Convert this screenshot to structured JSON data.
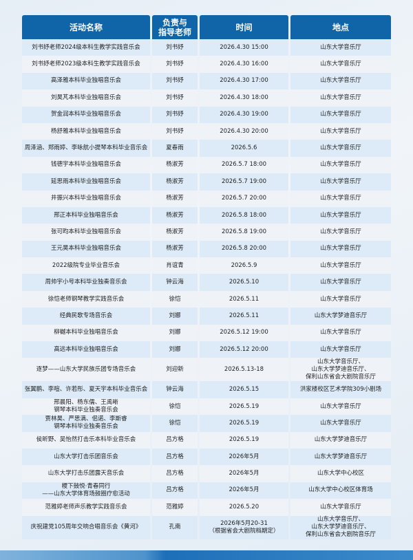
{
  "table": {
    "headers": [
      "活动名称",
      "负责与\n指导老师",
      "时间",
      "地点"
    ],
    "rows": [
      {
        "name": "刘书妤老师2024级本科生教学实践音乐会",
        "teacher": "刘书妤",
        "time": "2026.4.30 15:00",
        "place": "山东大学音乐厅"
      },
      {
        "name": "刘书妤老师2023级本科生教学实践音乐会",
        "teacher": "刘书妤",
        "time": "2026.4.30 16:00",
        "place": "山东大学音乐厅"
      },
      {
        "name": "高泽雅本科毕业独唱音乐会",
        "teacher": "刘书妤",
        "time": "2026.4.30 17:00",
        "place": "山东大学音乐厅"
      },
      {
        "name": "刘昊芃本科毕业独唱音乐会",
        "teacher": "刘书妤",
        "time": "2026.4.30 18:00",
        "place": "山东大学音乐厅"
      },
      {
        "name": "贺金润本科毕业独唱音乐会",
        "teacher": "刘书妤",
        "time": "2026.4.30 19:00",
        "place": "山东大学音乐厅"
      },
      {
        "name": "杨舒雅本科毕业独唱音乐会",
        "teacher": "刘书妤",
        "time": "2026.4.30 20:00",
        "place": "山东大学音乐厅"
      },
      {
        "name": "周泽涵、郑雨婷、李咏航小提琴本科毕业音乐会",
        "teacher": "夏春雨",
        "time": "2026.5.6",
        "place": "山东大学音乐厅"
      },
      {
        "name": "钱德宇本科毕业独唱音乐会",
        "teacher": "杨淑芳",
        "time": "2026.5.7  18:00",
        "place": "山东大学音乐厅"
      },
      {
        "name": "延思雨本科毕业独唱音乐会",
        "teacher": "杨淑芳",
        "time": "2026.5.7  19:00",
        "place": "山东大学音乐厅"
      },
      {
        "name": "井振兴本科毕业独唱音乐会",
        "teacher": "杨淑芳",
        "time": "2026.5.7  20:00",
        "place": "山东大学音乐厅"
      },
      {
        "name": "邢正本科毕业独唱音乐会",
        "teacher": "杨淑芳",
        "time": "2026.5.8  18:00",
        "place": "山东大学音乐厅"
      },
      {
        "name": "张可昀本科毕业独唱音乐会",
        "teacher": "杨淑芳",
        "time": "2026.5.8  19:00",
        "place": "山东大学音乐厅"
      },
      {
        "name": "王元昊本科毕业独唱音乐会",
        "teacher": "杨淑芳",
        "time": "2026.5.8  20:00",
        "place": "山东大学音乐厅"
      },
      {
        "name": "2022级院专业毕业音乐会",
        "teacher": "肖谊青",
        "time": "2026.5.9",
        "place": "山东大学音乐厅"
      },
      {
        "name": "周帅宇小号本科毕业独奏音乐会",
        "teacher": "钟云海",
        "time": "2026.5.10",
        "place": "山东大学音乐厅"
      },
      {
        "name": "徐恺老师钢琴教学实践音乐会",
        "teacher": "徐恺",
        "time": "2026.5.11",
        "place": "山东大学音乐厅"
      },
      {
        "name": "经典民歌专场音乐会",
        "teacher": "刘娜",
        "time": "2026.5.11",
        "place": "山东大学梦迪音乐厅"
      },
      {
        "name": "柳樾本科毕业独唱音乐会",
        "teacher": "刘娜",
        "time": "2026.5.12 19:00",
        "place": "山东大学音乐厅"
      },
      {
        "name": "高远本科毕业独唱音乐会",
        "teacher": "刘娜",
        "time": "2026.5.12 20:00",
        "place": "山东大学音乐厅"
      },
      {
        "name": "逐梦——山东大学民族乐团专场音乐会",
        "teacher": "刘迎新",
        "time": "2026.5.13-18",
        "place": "山东大学音乐厅、\n山东大学梦迪音乐厅、\n保利山东省会大剧院音乐厅"
      },
      {
        "name": "张翼鹏、李喧、许若彤、夏天宇本科毕业音乐会",
        "teacher": "钟云海",
        "time": "2026.5.15",
        "place": "洪家楼校区艺术学院309小剧场"
      },
      {
        "name": "邢晨阳、杨东儒、王禹晰\n钢琴本科毕业独奏音乐会",
        "teacher": "徐恺",
        "time": "2026.5.19",
        "place": "山东大学音乐厅"
      },
      {
        "name": "贾林昊、严思满、佀诺、李斯睿\n钢琴本科毕业独奏音乐会",
        "teacher": "徐恺",
        "time": "2026.5.19",
        "place": "山东大学音乐厅"
      },
      {
        "name": "侯昕野、吴怡然打击乐本科毕业音乐会",
        "teacher": "吕方格",
        "time": "2026.5.19",
        "place": "山东大学梦迪音乐厅"
      },
      {
        "name": "山东大学打击乐团音乐会",
        "teacher": "吕方格",
        "time": "2026年5月",
        "place": "山东大学梦迪音乐厅"
      },
      {
        "name": "山东大学打击乐团露天音乐会",
        "teacher": "吕方格",
        "time": "2026年5月",
        "place": "山东大学中心校区"
      },
      {
        "name": "稷下鼓悦·青春同行\n——山东大学体育场鼓圈疗愈活动",
        "teacher": "吕方格",
        "time": "2026年5月",
        "place": "山东大学中心校区体育场"
      },
      {
        "name": "范雅婷老师声乐教学实践音乐会",
        "teacher": "范雅婷",
        "time": "2026.5.20",
        "place": "山东大学音乐厅"
      },
      {
        "name": "庆祝建党105周年交响合唱音乐会《黄河》",
        "teacher": "孔南",
        "time": "2026年5月20-31\n（根据省会大剧院档期定）",
        "place": "山东大学音乐厅、\n山东大学梦迪音乐厅、\n保利山东省会大剧院音乐厅"
      }
    ]
  },
  "colors": {
    "header": "#0f65a8",
    "row_odd": "#ddebf8",
    "row_even": "#eff3f8"
  }
}
